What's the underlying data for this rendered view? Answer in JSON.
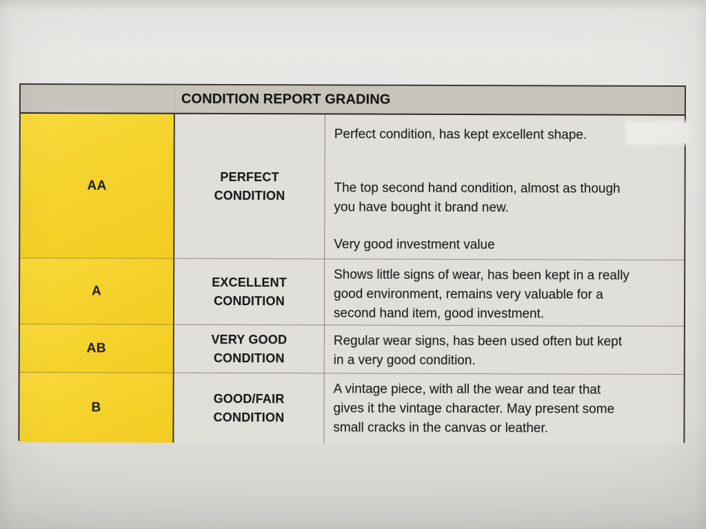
{
  "table": {
    "title": "CONDITION REPORT GRADING",
    "rows": [
      {
        "grade": "AA",
        "condition": "PERFECT\nCONDITION",
        "paragraphs": [
          "Perfect condition, has kept excellent shape.",
          "The top second hand condition, almost as though\nyou have bought it brand new.",
          "Very good investment value"
        ]
      },
      {
        "grade": "A",
        "condition": "EXCELLENT\nCONDITION",
        "paragraphs": [
          "Shows little signs of wear, has been kept in a really\ngood environment, remains very valuable for a\nsecond hand item, good investment."
        ]
      },
      {
        "grade": "AB",
        "condition": "VERY GOOD\nCONDITION",
        "paragraphs": [
          "Regular wear signs, has been used often but kept\nin a very good condition."
        ]
      },
      {
        "grade": "B",
        "condition": "GOOD/FAIR\nCONDITION",
        "paragraphs": [
          "A vintage piece, with all the wear and tear that\ngives it the vintage character. May present some\nsmall cracks in the canvas or leather."
        ]
      }
    ],
    "colors": {
      "grade_column_yellow": "#f5d22c",
      "header_gray": "#c8c4bc",
      "cell_background": "#e1dfda",
      "paper_background": "#e6e4e1",
      "border_dark": "#3a3731",
      "text": "#1b1a18"
    }
  }
}
